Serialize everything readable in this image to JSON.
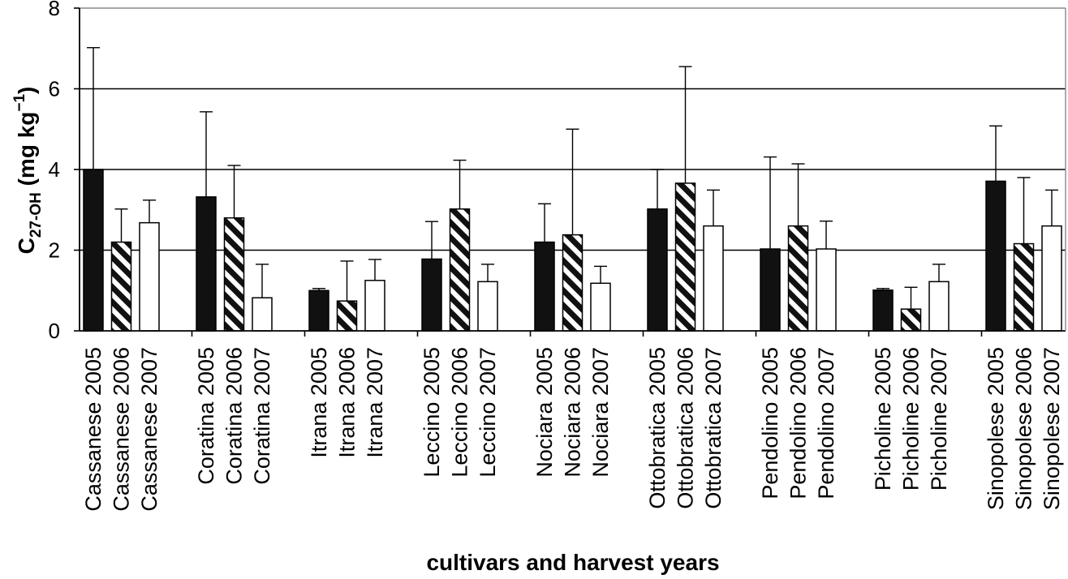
{
  "chart_data": {
    "type": "bar",
    "title": "",
    "xlabel": "cultivars and harvest years",
    "ylabel": {
      "main": "C",
      "subscript": "27-OH",
      "unit_prefix": " (mg kg",
      "unit_superscript": "−1",
      "unit_suffix": ")"
    },
    "ylim": [
      0,
      8
    ],
    "yticks": [
      0,
      2,
      4,
      6,
      8
    ],
    "grid": true,
    "categories": [
      "Cassanese 2005",
      "Cassanese 2006",
      "Cassanese 2007",
      "Coratina 2005",
      "Coratina 2006",
      "Coratina 2007",
      "Itrana 2005",
      "Itrana 2006",
      "Itrana 2007",
      "Leccino 2005",
      "Leccino 2006",
      "Leccino 2007",
      "Nociara 2005",
      "Nociara 2006",
      "Nociara 2007",
      "Ottobratica 2005",
      "Ottobratica 2006",
      "Ottobratica 2007",
      "Pendolino 2005",
      "Pendolino 2006",
      "Pendolino 2007",
      "Picholine 2005",
      "Picholine 2006",
      "Picholine 2007",
      "Sinopolese 2005",
      "Sinopolese 2006",
      "Sinopolese 2007"
    ],
    "values": [
      4.0,
      2.2,
      2.68,
      3.32,
      2.8,
      0.82,
      1.0,
      0.74,
      1.25,
      1.78,
      3.02,
      1.22,
      2.2,
      2.38,
      1.18,
      3.02,
      3.66,
      2.6,
      2.03,
      2.6,
      2.03,
      1.01,
      0.54,
      1.22,
      3.71,
      2.16,
      2.6
    ],
    "error_upper": [
      7.02,
      3.02,
      3.24,
      5.43,
      4.1,
      1.65,
      1.05,
      1.73,
      1.77,
      2.71,
      4.23,
      1.65,
      3.15,
      5.0,
      1.6,
      4.0,
      6.55,
      3.49,
      4.31,
      4.14,
      2.72,
      1.05,
      1.08,
      1.65,
      5.08,
      3.8,
      3.49
    ],
    "year_styles": {
      "2005": "solid-black",
      "2006": "black-white-diagonal-stripes",
      "2007": "white"
    }
  }
}
